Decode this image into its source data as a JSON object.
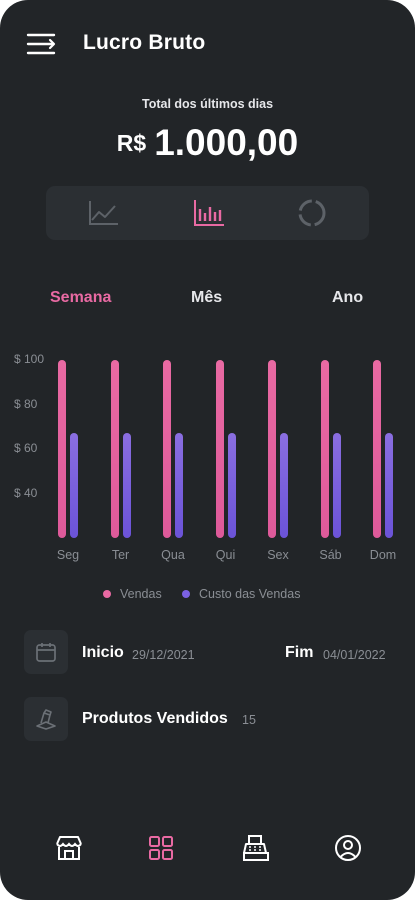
{
  "header": {
    "title": "Lucro Bruto",
    "menu_icon": "menu-icon"
  },
  "summary": {
    "label": "Total dos últimos dias",
    "currency": "R$",
    "value": "1.000,00"
  },
  "chart_switch": {
    "items": [
      "line-chart-icon",
      "bar-chart-icon",
      "donut-chart-icon"
    ],
    "active": "bar-chart-icon"
  },
  "period_tabs": {
    "week": "Semana",
    "month": "Mês",
    "year": "Ano",
    "active": "Semana"
  },
  "chart_data": {
    "type": "bar",
    "categories": [
      "Seg",
      "Ter",
      "Qua",
      "Qui",
      "Sex",
      "Sáb",
      "Dom"
    ],
    "series": [
      {
        "name": "Vendas",
        "values": [
          100,
          100,
          100,
          100,
          100,
          100,
          100
        ]
      },
      {
        "name": "Custo das Vendas",
        "values": [
          67,
          67,
          67,
          67,
          67,
          67,
          67
        ]
      }
    ],
    "yticks": [
      "$ 100",
      "$ 80",
      "$ 60",
      "$ 40"
    ],
    "ytick_values": [
      100,
      80,
      60,
      40
    ],
    "ylim": [
      20,
      100
    ],
    "legend": [
      "Vendas",
      "Custo das Vendas"
    ],
    "legend_position": "bottom",
    "grid": false
  },
  "colors": {
    "vendas": "#e96aa3",
    "custo": "#7b61e3",
    "accent": "#e96aa3",
    "background": "#222528"
  },
  "period": {
    "start_label": "Inicio",
    "start_value": "29/12/2021",
    "end_label": "Fim",
    "end_value": "04/01/2022",
    "icon": "calendar-icon"
  },
  "products": {
    "label": "Produtos Vendidos",
    "count": "15",
    "icon": "box-icon"
  },
  "nav": {
    "items": [
      "store-icon",
      "dashboard-icon",
      "register-icon",
      "profile-icon"
    ],
    "active": "dashboard-icon"
  }
}
